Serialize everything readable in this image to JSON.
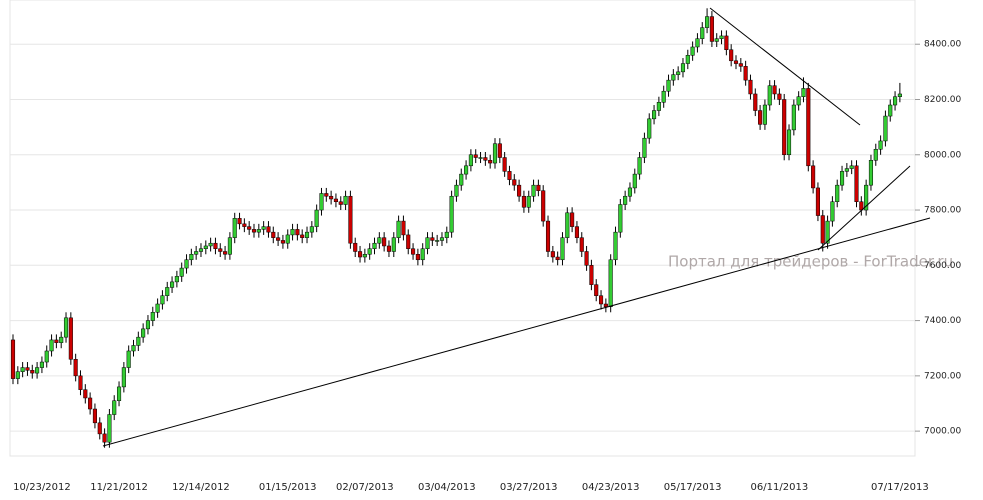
{
  "chart_data": {
    "type": "candlestick",
    "watermark": "Портал для трейдеров - ForTrader.ru",
    "up_color": "#33cc33",
    "down_color": "#cc0000",
    "grid": true,
    "ylim": [
      6910,
      8560
    ],
    "yticks": [
      {
        "value": 7000,
        "label": "7000.00"
      },
      {
        "value": 7200,
        "label": "7200.00"
      },
      {
        "value": 7400,
        "label": "7400.00"
      },
      {
        "value": 7600,
        "label": "7600.00"
      },
      {
        "value": 7800,
        "label": "7800.00"
      },
      {
        "value": 8000,
        "label": "8000.00"
      },
      {
        "value": 8200,
        "label": "8200.00"
      },
      {
        "value": 8400,
        "label": "8400.00"
      }
    ],
    "categories": [
      null,
      null,
      null,
      null,
      null,
      null,
      "10/23/2012",
      null,
      null,
      null,
      null,
      null,
      null,
      null,
      null,
      null,
      null,
      null,
      null,
      null,
      null,
      null,
      "11/21/2012",
      null,
      null,
      null,
      null,
      null,
      null,
      null,
      null,
      null,
      null,
      null,
      null,
      null,
      null,
      null,
      null,
      "12/14/2012",
      null,
      null,
      null,
      null,
      null,
      null,
      null,
      null,
      null,
      null,
      null,
      null,
      null,
      null,
      null,
      null,
      null,
      "01/15/2013",
      null,
      null,
      null,
      null,
      null,
      null,
      null,
      null,
      null,
      null,
      null,
      null,
      null,
      null,
      null,
      "02/07/2013",
      null,
      null,
      null,
      null,
      null,
      null,
      null,
      null,
      null,
      null,
      null,
      null,
      null,
      null,
      null,
      null,
      "03/04/2013",
      null,
      null,
      null,
      null,
      null,
      null,
      null,
      null,
      null,
      null,
      null,
      null,
      null,
      null,
      null,
      null,
      "03/27/2013",
      null,
      null,
      null,
      null,
      null,
      null,
      null,
      null,
      null,
      null,
      null,
      null,
      null,
      null,
      null,
      null,
      "04/23/2013",
      null,
      null,
      null,
      null,
      null,
      null,
      null,
      null,
      null,
      null,
      null,
      null,
      null,
      null,
      null,
      null,
      "05/17/2013",
      null,
      null,
      null,
      null,
      null,
      null,
      null,
      null,
      null,
      null,
      null,
      null,
      null,
      null,
      null,
      null,
      null,
      "06/11/2013",
      null,
      null,
      null,
      null,
      null,
      null,
      null,
      null,
      null,
      null,
      null,
      null,
      null,
      null,
      null,
      null,
      null,
      null,
      null,
      null,
      null,
      null,
      null,
      null,
      "07/17/2013"
    ],
    "open": [
      7330,
      7190,
      7215,
      7230,
      7220,
      7210,
      7230,
      7250,
      7290,
      7330,
      7320,
      7340,
      7410,
      7260,
      7200,
      7150,
      7120,
      7080,
      7030,
      6990,
      6960,
      7060,
      7110,
      7160,
      7230,
      7290,
      7310,
      7340,
      7370,
      7400,
      7430,
      7460,
      7490,
      7520,
      7540,
      7560,
      7590,
      7620,
      7640,
      7650,
      7660,
      7670,
      7680,
      7660,
      7650,
      7640,
      7700,
      7770,
      7750,
      7740,
      7730,
      7720,
      7730,
      7740,
      7720,
      7700,
      7690,
      7680,
      7710,
      7730,
      7710,
      7700,
      7720,
      7740,
      7800,
      7860,
      7850,
      7840,
      7830,
      7820,
      7850,
      7680,
      7650,
      7630,
      7640,
      7660,
      7680,
      7700,
      7670,
      7650,
      7700,
      7760,
      7710,
      7660,
      7640,
      7620,
      7660,
      7700,
      7690,
      7690,
      7700,
      7720,
      7850,
      7890,
      7930,
      7960,
      8000,
      7990,
      7990,
      7980,
      7970,
      8040,
      7990,
      7940,
      7910,
      7890,
      7850,
      7810,
      7850,
      7890,
      7870,
      7760,
      7650,
      7630,
      7620,
      7700,
      7790,
      7740,
      7700,
      7650,
      7600,
      7530,
      7490,
      7460,
      7450,
      7620,
      7720,
      7820,
      7850,
      7880,
      7930,
      7990,
      8060,
      8130,
      8160,
      8190,
      8230,
      8270,
      8290,
      8300,
      8330,
      8360,
      8390,
      8420,
      8460,
      8500,
      8410,
      8420,
      8430,
      8380,
      8340,
      8330,
      8320,
      8270,
      8220,
      8160,
      8110,
      8180,
      8250,
      8220,
      8200,
      8000,
      8090,
      8180,
      8210,
      8240,
      7960,
      7880,
      7780,
      7680,
      7760,
      7830,
      7890,
      7940,
      7950,
      7960,
      7830,
      7800,
      7890,
      7980,
      8020,
      8050,
      8140,
      8180,
      8210
    ],
    "high": [
      7350,
      7235,
      7250,
      7250,
      7240,
      7250,
      7270,
      7310,
      7350,
      7350,
      7360,
      7430,
      7430,
      7280,
      7220,
      7170,
      7140,
      7100,
      7050,
      7010,
      7080,
      7130,
      7180,
      7250,
      7310,
      7330,
      7360,
      7390,
      7420,
      7450,
      7480,
      7510,
      7540,
      7560,
      7580,
      7610,
      7640,
      7660,
      7670,
      7680,
      7690,
      7700,
      7700,
      7680,
      7670,
      7720,
      7790,
      7790,
      7770,
      7760,
      7750,
      7750,
      7760,
      7760,
      7740,
      7720,
      7710,
      7730,
      7750,
      7750,
      7730,
      7740,
      7760,
      7820,
      7880,
      7880,
      7870,
      7860,
      7850,
      7870,
      7870,
      7700,
      7670,
      7660,
      7680,
      7700,
      7720,
      7720,
      7690,
      7720,
      7780,
      7780,
      7730,
      7680,
      7660,
      7680,
      7720,
      7720,
      7710,
      7720,
      7740,
      7870,
      7910,
      7950,
      7980,
      8020,
      8020,
      8010,
      8010,
      8000,
      8060,
      8060,
      8010,
      7960,
      7930,
      7910,
      7870,
      7870,
      7910,
      7910,
      7890,
      7780,
      7670,
      7650,
      7720,
      7810,
      7810,
      7760,
      7720,
      7670,
      7620,
      7550,
      7510,
      7480,
      7640,
      7740,
      7840,
      7870,
      7900,
      7950,
      8010,
      8080,
      8150,
      8180,
      8210,
      8250,
      8290,
      8310,
      8320,
      8350,
      8380,
      8410,
      8440,
      8480,
      8530,
      8520,
      8440,
      8450,
      8450,
      8400,
      8360,
      8350,
      8340,
      8290,
      8240,
      8180,
      8200,
      8270,
      8270,
      8240,
      8220,
      8110,
      8200,
      8230,
      8280,
      8260,
      7980,
      7900,
      7800,
      7780,
      7850,
      7910,
      7960,
      7970,
      7980,
      7980,
      7850,
      7910,
      8000,
      8040,
      8070,
      8160,
      8200,
      8230,
      8260
    ],
    "low": [
      7170,
      7170,
      7195,
      7200,
      7190,
      7190,
      7210,
      7230,
      7270,
      7300,
      7300,
      7320,
      7240,
      7180,
      7130,
      7100,
      7060,
      7010,
      6970,
      6940,
      6940,
      7040,
      7090,
      7140,
      7210,
      7270,
      7290,
      7320,
      7350,
      7380,
      7410,
      7440,
      7470,
      7500,
      7520,
      7540,
      7570,
      7600,
      7620,
      7630,
      7640,
      7650,
      7640,
      7630,
      7620,
      7620,
      7680,
      7730,
      7720,
      7710,
      7700,
      7700,
      7710,
      7700,
      7680,
      7670,
      7660,
      7660,
      7690,
      7690,
      7680,
      7680,
      7700,
      7720,
      7780,
      7830,
      7820,
      7810,
      7800,
      7800,
      7660,
      7630,
      7610,
      7610,
      7620,
      7640,
      7660,
      7650,
      7630,
      7630,
      7680,
      7690,
      7640,
      7620,
      7600,
      7600,
      7640,
      7670,
      7670,
      7670,
      7680,
      7700,
      7830,
      7870,
      7910,
      7940,
      7970,
      7970,
      7960,
      7950,
      7950,
      7970,
      7920,
      7890,
      7870,
      7830,
      7790,
      7790,
      7830,
      7850,
      7740,
      7630,
      7610,
      7600,
      7600,
      7680,
      7720,
      7680,
      7630,
      7580,
      7510,
      7470,
      7440,
      7430,
      7430,
      7600,
      7700,
      7800,
      7830,
      7860,
      7910,
      7970,
      8040,
      8110,
      8140,
      8170,
      8210,
      8250,
      8270,
      8280,
      8310,
      8340,
      8370,
      8400,
      8440,
      8390,
      8390,
      8400,
      8360,
      8320,
      8310,
      8300,
      8250,
      8200,
      8140,
      8090,
      8090,
      8160,
      8200,
      8180,
      7980,
      7980,
      8070,
      8160,
      8190,
      7940,
      7860,
      7760,
      7650,
      7660,
      7740,
      7810,
      7870,
      7920,
      7930,
      7810,
      7780,
      7780,
      7870,
      7960,
      8000,
      8030,
      8120,
      8160,
      8190
    ],
    "close": [
      7190,
      7215,
      7230,
      7220,
      7210,
      7230,
      7250,
      7290,
      7330,
      7320,
      7340,
      7410,
      7260,
      7200,
      7150,
      7120,
      7080,
      7030,
      6990,
      6960,
      7060,
      7110,
      7160,
      7230,
      7290,
      7310,
      7340,
      7370,
      7400,
      7430,
      7460,
      7490,
      7520,
      7540,
      7560,
      7590,
      7620,
      7640,
      7650,
      7660,
      7670,
      7680,
      7660,
      7650,
      7640,
      7700,
      7770,
      7750,
      7740,
      7730,
      7720,
      7730,
      7740,
      7720,
      7700,
      7690,
      7680,
      7710,
      7730,
      7710,
      7700,
      7720,
      7740,
      7800,
      7860,
      7850,
      7840,
      7830,
      7820,
      7850,
      7680,
      7650,
      7630,
      7640,
      7660,
      7680,
      7700,
      7670,
      7650,
      7700,
      7760,
      7710,
      7660,
      7640,
      7620,
      7660,
      7700,
      7690,
      7690,
      7700,
      7720,
      7850,
      7890,
      7930,
      7960,
      8000,
      7990,
      7990,
      7980,
      7970,
      8040,
      7990,
      7940,
      7910,
      7890,
      7850,
      7810,
      7850,
      7890,
      7870,
      7760,
      7650,
      7630,
      7620,
      7700,
      7790,
      7740,
      7700,
      7650,
      7600,
      7530,
      7490,
      7460,
      7450,
      7620,
      7720,
      7820,
      7850,
      7880,
      7930,
      7990,
      8060,
      8130,
      8160,
      8190,
      8230,
      8270,
      8290,
      8300,
      8330,
      8360,
      8390,
      8420,
      8460,
      8500,
      8410,
      8420,
      8430,
      8380,
      8340,
      8330,
      8320,
      8270,
      8220,
      8160,
      8110,
      8180,
      8250,
      8220,
      8200,
      8000,
      8090,
      8180,
      8210,
      8240,
      7960,
      7880,
      7780,
      7680,
      7760,
      7830,
      7890,
      7940,
      7950,
      7960,
      7830,
      7800,
      7890,
      7980,
      8020,
      8050,
      8140,
      8180,
      8210,
      8220
    ]
  }
}
